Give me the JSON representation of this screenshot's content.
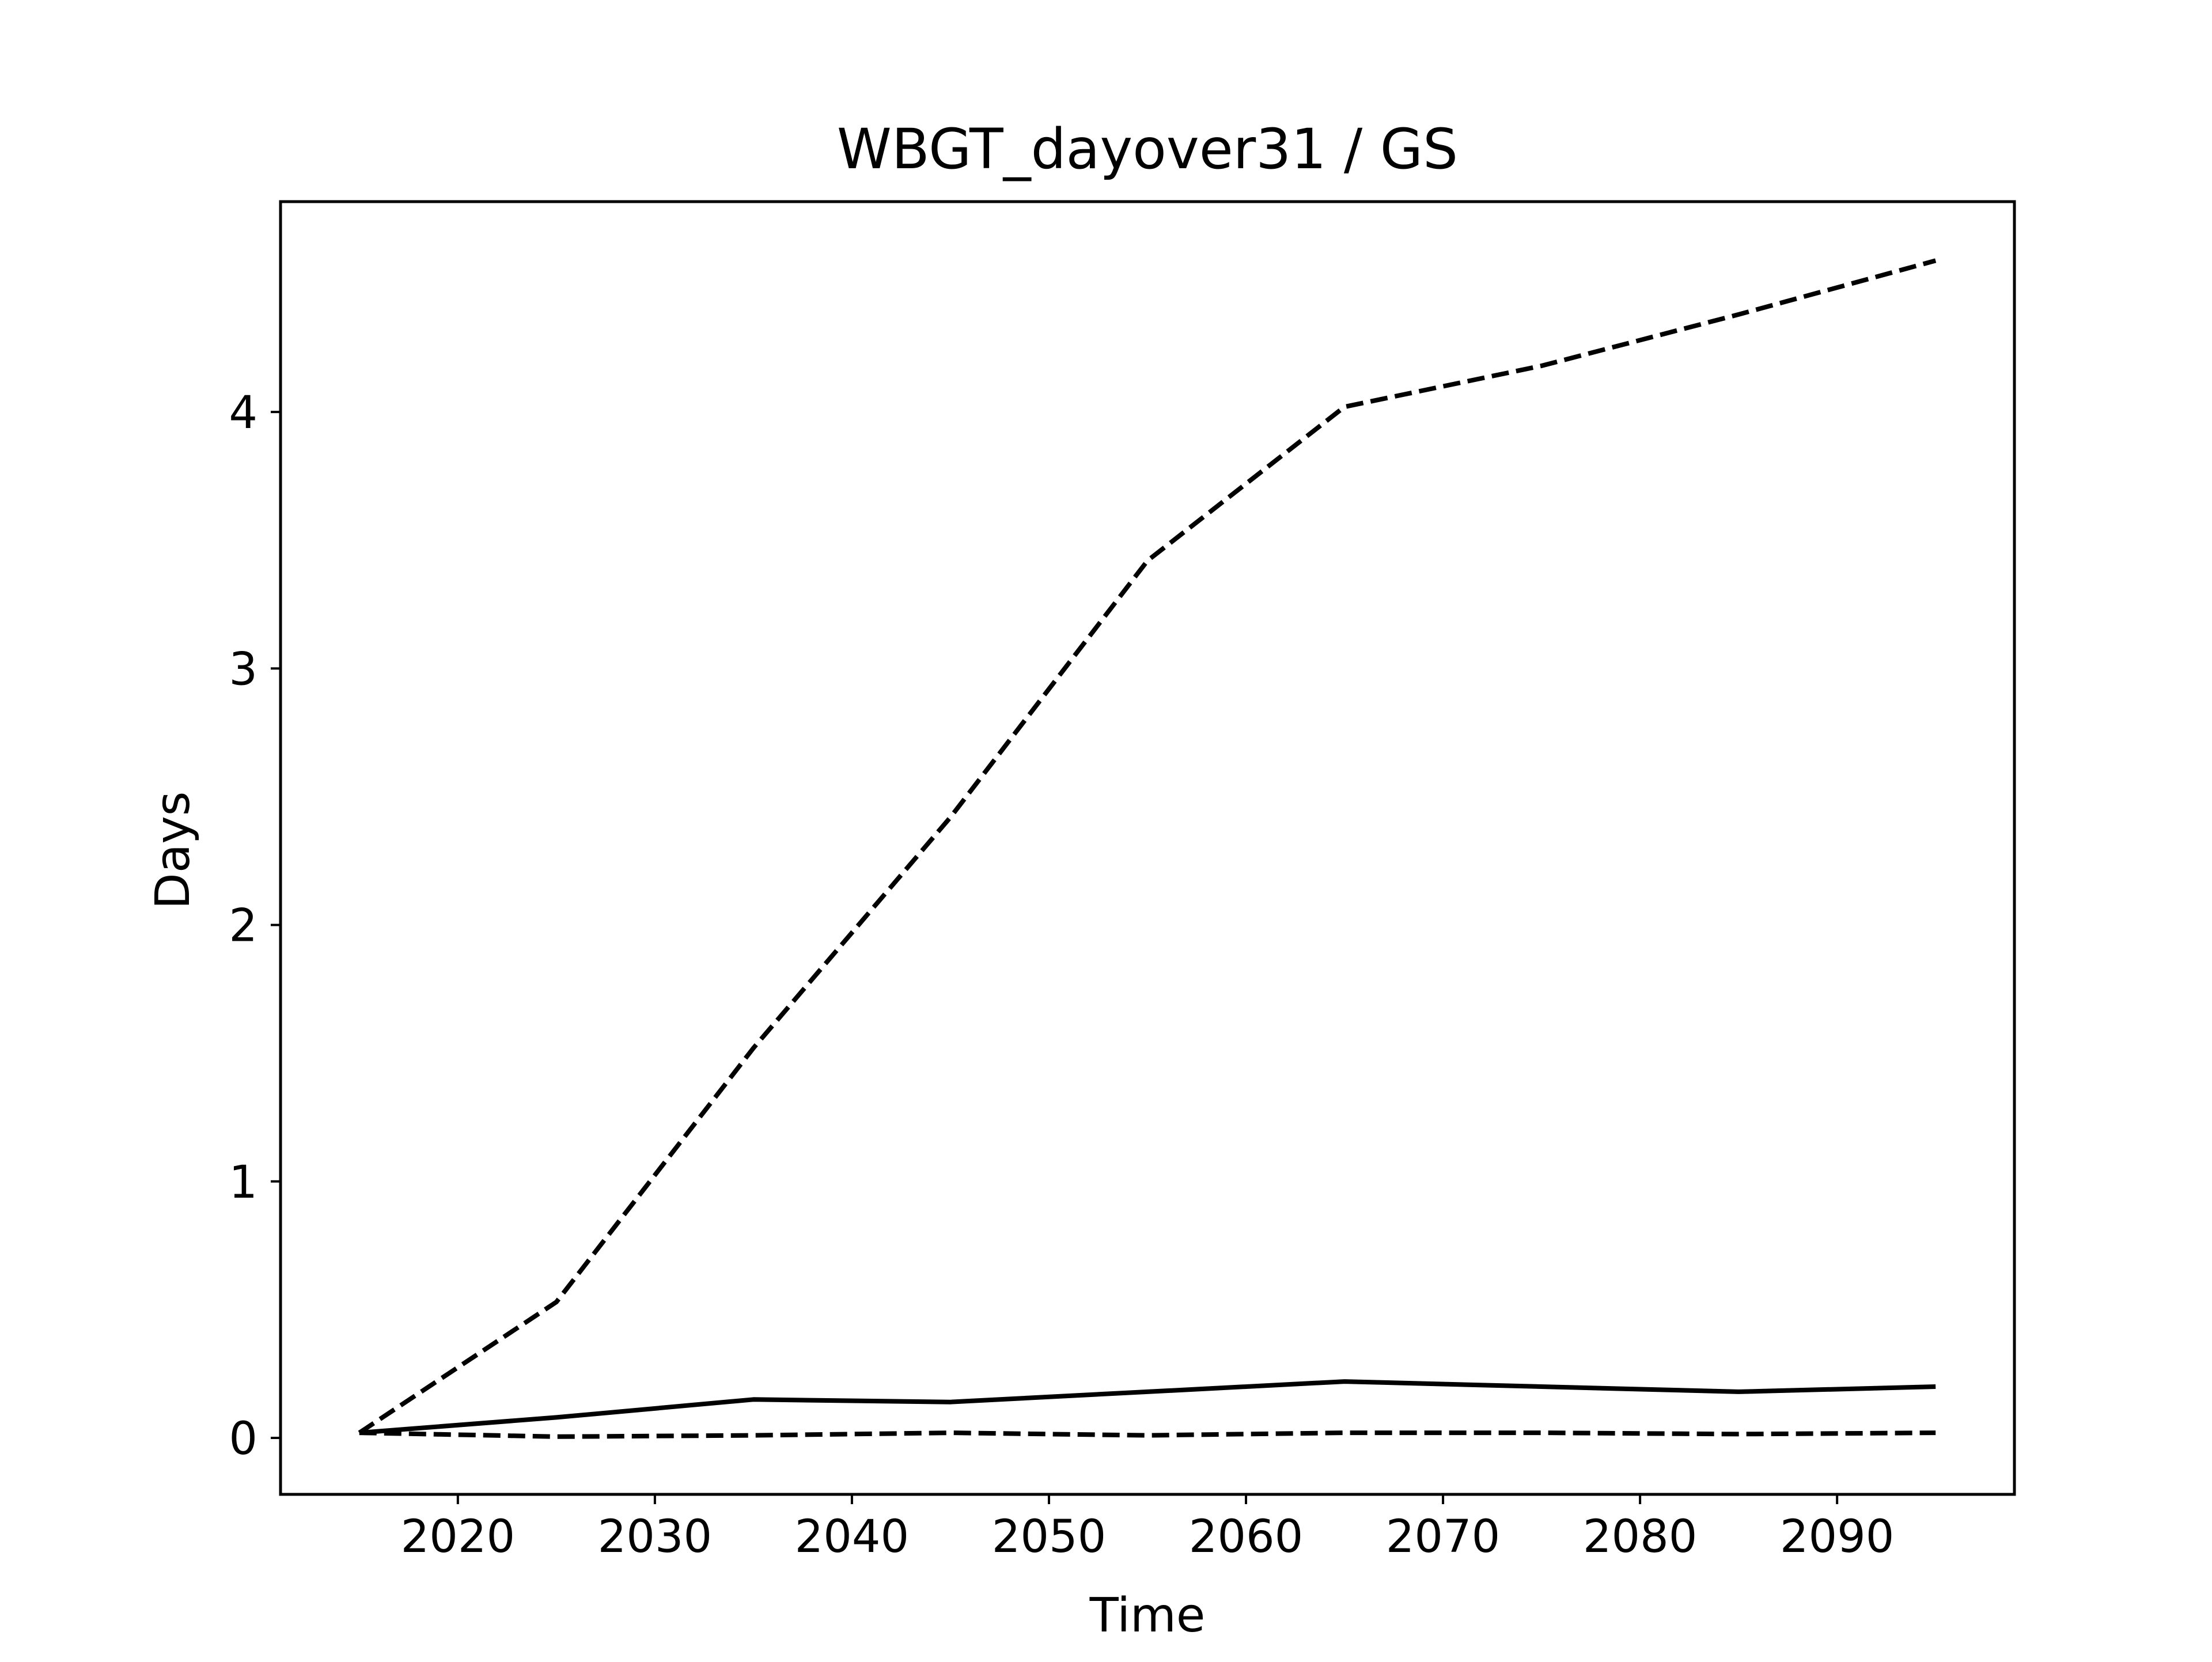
{
  "chart_data": {
    "type": "line",
    "title": "WBGT_dayover31 / GS",
    "xlabel": "Time",
    "ylabel": "Days",
    "xlim": [
      2011,
      2099
    ],
    "ylim": [
      -0.22,
      4.82
    ],
    "xticks": [
      2020,
      2030,
      2040,
      2050,
      2060,
      2070,
      2080,
      2090
    ],
    "yticks": [
      0,
      1,
      2,
      3,
      4
    ],
    "grid": false,
    "legend": "none",
    "colors": {
      "line": "#000000"
    },
    "x": [
      2015,
      2025,
      2035,
      2045,
      2055,
      2065,
      2075,
      2085,
      2095
    ],
    "series": [
      {
        "style": "dashed",
        "values": [
          0.02,
          0.53,
          1.52,
          2.42,
          3.42,
          4.02,
          4.18,
          4.38,
          4.59
        ]
      },
      {
        "style": "solid",
        "values": [
          0.02,
          0.08,
          0.15,
          0.14,
          0.18,
          0.22,
          0.2,
          0.18,
          0.2
        ]
      },
      {
        "style": "dashed",
        "values": [
          0.02,
          0.005,
          0.01,
          0.02,
          0.01,
          0.02,
          0.02,
          0.015,
          0.02
        ]
      }
    ]
  }
}
